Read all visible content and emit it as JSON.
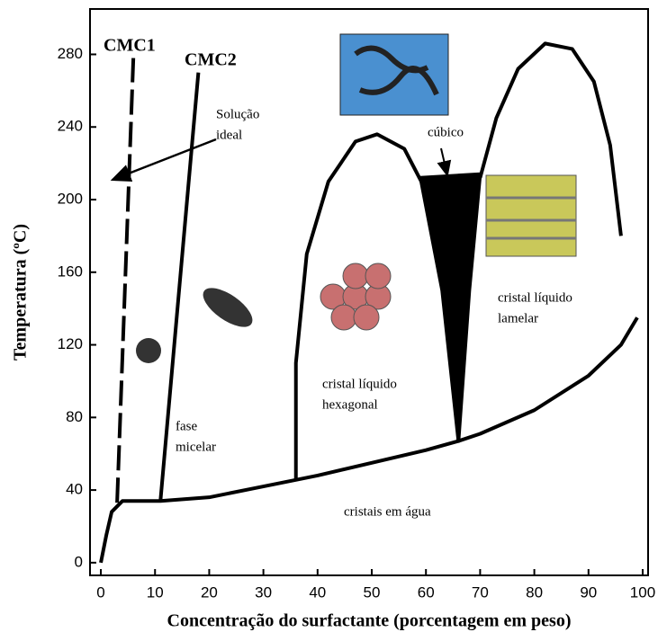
{
  "chart_data": {
    "type": "line",
    "xlabel": "Concentração do surfactante (porcentagem em peso)",
    "ylabel": "Temperatura (ºC)",
    "xlim": [
      -2,
      101
    ],
    "ylim": [
      -7,
      305
    ],
    "xticks": [
      0,
      10,
      20,
      30,
      40,
      50,
      60,
      70,
      80,
      90,
      100
    ],
    "yticks": [
      0,
      40,
      80,
      120,
      160,
      200,
      240,
      280
    ],
    "series": [
      {
        "color": "#000000",
        "x": [
          0,
          1,
          2,
          4,
          11,
          20,
          30,
          40,
          50,
          60,
          66,
          70,
          80,
          90,
          96,
          99
        ],
        "values": [
          0,
          15,
          28,
          34,
          34,
          36,
          42,
          48,
          55,
          62,
          67,
          71,
          84,
          103,
          120,
          135
        ]
      },
      {
        "color": "#000000",
        "dashed": true,
        "x": [
          3,
          6
        ],
        "values": [
          33,
          278
        ]
      },
      {
        "color": "#000000",
        "x": [
          11,
          18
        ],
        "values": [
          34,
          270
        ]
      },
      {
        "color": "#000000",
        "x": [
          36,
          36,
          38,
          42,
          47,
          51,
          56,
          60,
          63,
          65,
          66
        ],
        "values": [
          45,
          110,
          170,
          210,
          232,
          236,
          228,
          205,
          170,
          120,
          67
        ]
      },
      {
        "color": "#000000",
        "x": [
          70,
          73,
          77,
          82,
          87,
          91,
          94,
          96
        ],
        "values": [
          212,
          245,
          272,
          286,
          283,
          265,
          230,
          180
        ]
      },
      {
        "color": "#000000",
        "fill": true,
        "x": [
          59,
          70,
          68,
          66,
          63
        ],
        "values": [
          212,
          214,
          150,
          67,
          150
        ]
      }
    ],
    "annotations": [
      {
        "text": [
          "CMC1"
        ]
      },
      {
        "text": [
          "CMC2"
        ]
      },
      {
        "text": [
          "Solução",
          "ideal"
        ]
      },
      {
        "text": [
          "cúbico"
        ]
      },
      {
        "text": [
          "cristal líquido",
          "lamelar"
        ]
      },
      {
        "text": [
          "cristal líquido",
          "hexagonal"
        ]
      },
      {
        "text": [
          "fase",
          "micelar"
        ]
      },
      {
        "text": [
          "cristais em água"
        ]
      }
    ]
  }
}
